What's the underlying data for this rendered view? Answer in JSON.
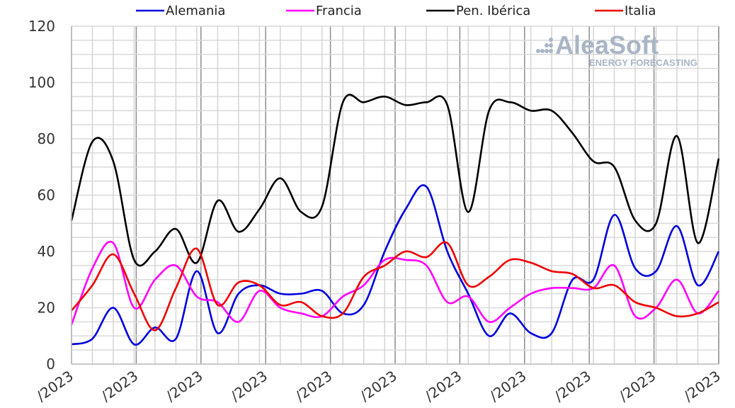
{
  "chart_data": {
    "type": "line",
    "title": "",
    "xlabel": "",
    "ylabel": "",
    "ylim": [
      0,
      120
    ],
    "yticks": [
      0,
      20,
      40,
      60,
      80,
      100,
      120
    ],
    "x_tick_labels": [
      "/2023",
      "/2023",
      "/2023",
      "/2023",
      "/2023",
      "/2023",
      "/2023",
      "/2023",
      "/2023",
      "/2023",
      "/2023"
    ],
    "legend_position": "top",
    "grid": true,
    "series": [
      {
        "name": "Alemania",
        "color": "#0000dd",
        "values": [
          7,
          9,
          20,
          7,
          13,
          9,
          33,
          11,
          25,
          28,
          25,
          25,
          26,
          18,
          21,
          40,
          55,
          63,
          40,
          25,
          10,
          18,
          11,
          11,
          30,
          30,
          53,
          34,
          33,
          49,
          28,
          40
        ]
      },
      {
        "name": "Francia",
        "color": "#ff00ff",
        "values": [
          14,
          34,
          43,
          20,
          30,
          35,
          24,
          22,
          15,
          26,
          20,
          18,
          17,
          24,
          28,
          37,
          37,
          35,
          22,
          24,
          15,
          20,
          25,
          27,
          27,
          27,
          35,
          17,
          20,
          30,
          18,
          26
        ]
      },
      {
        "name": "Pen. Ibérica",
        "color": "#000000",
        "values": [
          51,
          79,
          72,
          37,
          40,
          48,
          36,
          58,
          47,
          55,
          66,
          54,
          56,
          93,
          93,
          95,
          92,
          93,
          92,
          54,
          90,
          93,
          90,
          90,
          82,
          72,
          70,
          51,
          50,
          81,
          43,
          73
        ]
      },
      {
        "name": "Italia",
        "color": "#ee0000",
        "values": [
          19,
          28,
          39,
          25,
          12,
          27,
          41,
          21,
          29,
          28,
          21,
          22,
          17,
          18,
          31,
          35,
          40,
          38,
          43,
          28,
          31,
          37,
          36,
          33,
          32,
          27,
          28,
          22,
          20,
          17,
          18,
          22
        ]
      }
    ]
  },
  "logo": {
    "main": "AleaSoft",
    "sub": "ENERGY FORECASTING"
  }
}
